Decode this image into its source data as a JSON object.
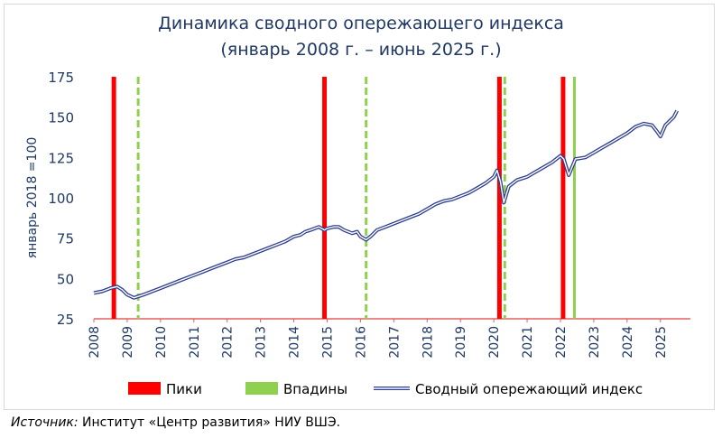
{
  "chart_data": {
    "type": "line",
    "title": "Динамика сводного опережающего индекса",
    "subtitle": "(январь 2008 г. –  июнь 2025 г.)",
    "ylabel": "январь 2018 =100",
    "xlabel": "",
    "ylim": [
      25,
      175
    ],
    "y_ticks": [
      25,
      50,
      75,
      100,
      125,
      150,
      175
    ],
    "x_ticks": [
      "2008",
      "2009",
      "2010",
      "2011",
      "2012",
      "2013",
      "2014",
      "2015",
      "2016",
      "2017",
      "2018",
      "2019",
      "2020",
      "2021",
      "2022",
      "2023",
      "2024",
      "2025"
    ],
    "grid": false,
    "legend_position": "bottom",
    "legend": {
      "peaks": "Пики",
      "troughs": "Впадины",
      "index": "Сводный опережающий индекс"
    },
    "peaks": [
      2008.6,
      2014.92,
      2020.17,
      2022.08
    ],
    "troughs": [
      2009.33,
      2016.17,
      2020.33,
      2022.42
    ],
    "series": [
      {
        "name": "Сводный опережающий индекс",
        "x": [
          2008.0,
          2008.25,
          2008.5,
          2008.7,
          2008.85,
          2009.0,
          2009.2,
          2009.5,
          2009.75,
          2010.0,
          2010.25,
          2010.5,
          2010.75,
          2011.0,
          2011.25,
          2011.5,
          2011.75,
          2012.0,
          2012.25,
          2012.5,
          2012.75,
          2013.0,
          2013.25,
          2013.5,
          2013.75,
          2014.0,
          2014.2,
          2014.35,
          2014.5,
          2014.75,
          2014.92,
          2015.0,
          2015.2,
          2015.35,
          2015.5,
          2015.75,
          2015.9,
          2016.0,
          2016.17,
          2016.3,
          2016.5,
          2016.75,
          2017.0,
          2017.25,
          2017.5,
          2017.75,
          2018.0,
          2018.25,
          2018.5,
          2018.75,
          2019.0,
          2019.25,
          2019.5,
          2019.75,
          2020.0,
          2020.1,
          2020.2,
          2020.3,
          2020.45,
          2020.7,
          2021.0,
          2021.25,
          2021.5,
          2021.75,
          2022.0,
          2022.1,
          2022.25,
          2022.45,
          2022.75,
          2023.0,
          2023.25,
          2023.5,
          2023.75,
          2024.0,
          2024.25,
          2024.5,
          2024.75,
          2024.9,
          2025.0,
          2025.15,
          2025.3,
          2025.4,
          2025.5
        ],
        "values": [
          41,
          42,
          44,
          45,
          43,
          40,
          38,
          40,
          42,
          44,
          46,
          48,
          50,
          52,
          54,
          56,
          58,
          60,
          62,
          63,
          65,
          67,
          69,
          71,
          73,
          76,
          77,
          79,
          80,
          82,
          80,
          81,
          82,
          82,
          80,
          78,
          79,
          76,
          74,
          76,
          80,
          82,
          84,
          86,
          88,
          90,
          93,
          96,
          98,
          99,
          101,
          103,
          106,
          109,
          113,
          117,
          110,
          97,
          107,
          111,
          113,
          116,
          119,
          122,
          126,
          124,
          114,
          124,
          125,
          128,
          131,
          134,
          137,
          140,
          144,
          146,
          145,
          141,
          138,
          145,
          148,
          150,
          154
        ]
      }
    ],
    "colors": {
      "peak": "#ff0000",
      "trough": "#8fd14f",
      "line_outer": "#2f3f8f",
      "line_inner": "#ffffff",
      "axis_text": "#1f3864",
      "title": "#1f3864",
      "x_axis": "#e06060"
    }
  },
  "source": {
    "label": "Источник:",
    "text": " Институт «Центр развития» НИУ ВШЭ."
  }
}
